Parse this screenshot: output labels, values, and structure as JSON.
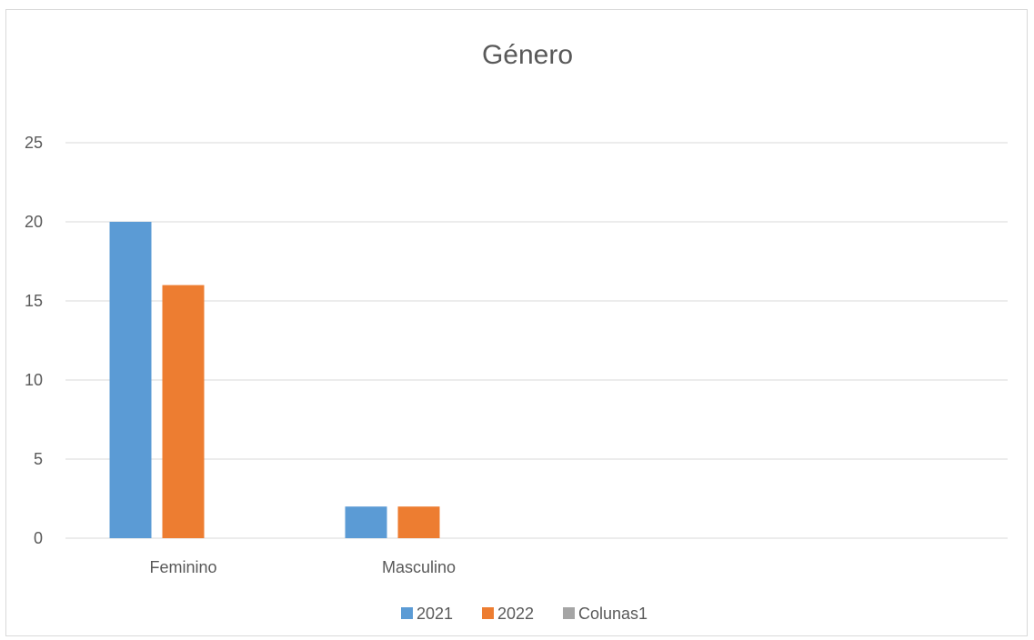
{
  "chart_data": {
    "type": "bar",
    "title": "Género",
    "categories": [
      "Feminino",
      "Masculino",
      "",
      ""
    ],
    "series": [
      {
        "name": "2021",
        "values": [
          20,
          2,
          null,
          null
        ],
        "color": "#5B9BD5"
      },
      {
        "name": "2022",
        "values": [
          16,
          2,
          null,
          null
        ],
        "color": "#ED7D31"
      },
      {
        "name": "Colunas1",
        "values": [
          null,
          null,
          null,
          null
        ],
        "color": "#A5A5A5"
      }
    ],
    "yticks": [
      0,
      5,
      10,
      15,
      20,
      25
    ],
    "ylim": [
      0,
      25
    ],
    "grid": true,
    "legend_position": "bottom",
    "xlabel": "",
    "ylabel": ""
  }
}
